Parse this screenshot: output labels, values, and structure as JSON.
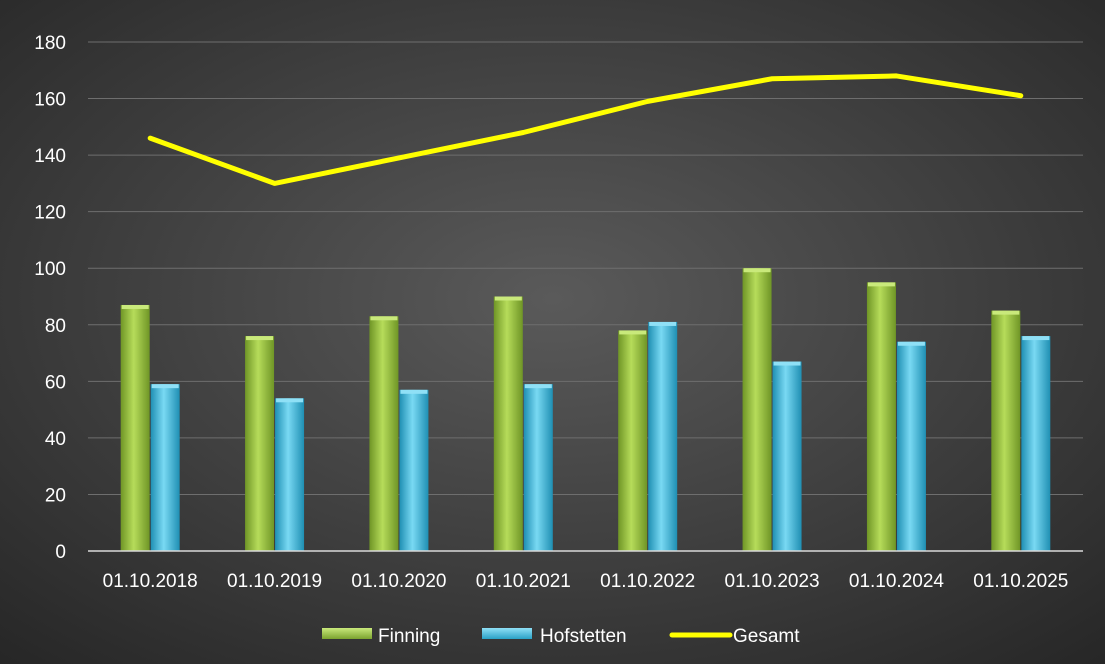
{
  "chart_data": {
    "type": "bar",
    "title": "",
    "xlabel": "",
    "ylabel": "",
    "categories": [
      "01.10.2018",
      "01.10.2019",
      "01.10.2020",
      "01.10.2021",
      "01.10.2022",
      "01.10.2023",
      "01.10.2024",
      "01.10.2025"
    ],
    "ylim": [
      0,
      180
    ],
    "yticks": [
      0,
      20,
      40,
      60,
      80,
      100,
      120,
      140,
      160,
      180
    ],
    "grid": true,
    "legend_position": "bottom",
    "series": [
      {
        "name": "Finning",
        "kind": "bar",
        "color": "#9bc23c",
        "values": [
          87,
          76,
          83,
          90,
          78,
          100,
          95,
          85
        ]
      },
      {
        "name": "Hofstetten",
        "kind": "bar",
        "color": "#4cc3e6",
        "values": [
          59,
          54,
          57,
          59,
          81,
          67,
          74,
          76
        ]
      },
      {
        "name": "Gesamt",
        "kind": "line",
        "color": "#ffff00",
        "values": [
          146,
          130,
          139,
          148,
          159,
          167,
          168,
          161
        ]
      }
    ]
  },
  "colors": {
    "background_outer": "#2b2b2b",
    "background_center": "#595959",
    "gridline": "#6e6e6e",
    "axis_text": "#ffffff",
    "finning": "#9bc23c",
    "hofstetten": "#4cc3e6",
    "gesamt": "#ffff00"
  }
}
